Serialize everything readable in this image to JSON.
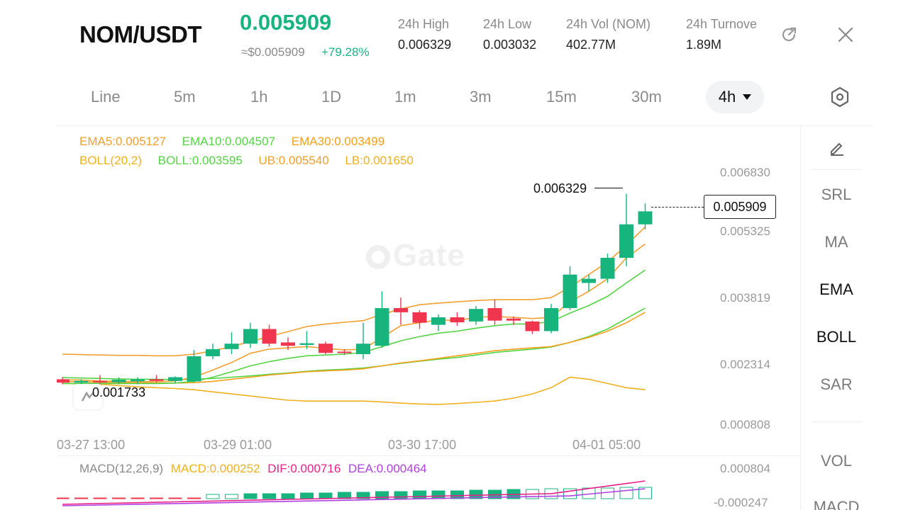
{
  "header": {
    "pair": "NOM/USDT",
    "last_price": "0.005909",
    "approx_usd": "≈$0.005909",
    "change_pct": "+79.28%",
    "stats": [
      {
        "label": "24h  High",
        "value": "0.006329"
      },
      {
        "label": "24h  Low",
        "value": "0.003032"
      },
      {
        "label": "24h  Vol (NOM)",
        "value": "402.77M"
      },
      {
        "label": "24h  Turnove",
        "value": "1.89M"
      }
    ],
    "icons": {
      "external": "external-link-icon",
      "close": "close-icon"
    }
  },
  "intervals": [
    "Line",
    "5m",
    "1h",
    "1D",
    "1m",
    "3m",
    "15m",
    "30m"
  ],
  "selected_interval": "4h",
  "indicators": {
    "ema5": "EMA5:0.005127",
    "ema10": "EMA10:0.004507",
    "ema30": "EMA30:0.003499",
    "boll_params": "BOLL(20,2)",
    "boll": "BOLL:0.003595",
    "ub": "UB:0.005540",
    "lb": "LB:0.001650"
  },
  "price_axis": [
    "0.006830",
    "0.005325",
    "0.003819",
    "0.002314",
    "0.000808"
  ],
  "time_axis": [
    "03-27 13:00",
    "03-29 01:00",
    "03-30 17:00",
    "04-01 05:00"
  ],
  "high_marker": "0.006329",
  "low_marker": "0.001733",
  "current_price_tag": "0.005909",
  "watermark": "Gate",
  "macd": {
    "params": "MACD(12,26,9)",
    "macd": "MACD:0.000252",
    "dif": "DIF:0.000716",
    "dea": "DEA:0.000464",
    "axis": [
      "0.000804",
      "-0.000247"
    ]
  },
  "side_toolbar": [
    "SRL",
    "MA",
    "EMA",
    "BOLL",
    "SAR",
    "VOL",
    "MACD"
  ],
  "side_active": [
    "EMA",
    "BOLL"
  ],
  "colors": {
    "up": "#18b47e",
    "down": "#f0364e",
    "ema5": "#f0a030",
    "ema10": "#54d444",
    "ema30": "#f4a01c",
    "boll": "#f0b020",
    "dif": "#e8208a",
    "dea": "#b040e0"
  },
  "chart_data": {
    "type": "candlestick",
    "interval": "4h",
    "ylim": [
      0.000808,
      0.00683
    ],
    "candles": [
      {
        "o": 0.0019,
        "h": 0.00195,
        "l": 0.00178,
        "c": 0.00182
      },
      {
        "o": 0.00182,
        "h": 0.0019,
        "l": 0.00173,
        "c": 0.00186
      },
      {
        "o": 0.00186,
        "h": 0.002,
        "l": 0.0018,
        "c": 0.00183
      },
      {
        "o": 0.00183,
        "h": 0.00195,
        "l": 0.00178,
        "c": 0.00189
      },
      {
        "o": 0.00185,
        "h": 0.00195,
        "l": 0.00178,
        "c": 0.0019
      },
      {
        "o": 0.0019,
        "h": 0.002,
        "l": 0.00183,
        "c": 0.00186
      },
      {
        "o": 0.00186,
        "h": 0.00197,
        "l": 0.0018,
        "c": 0.00195
      },
      {
        "o": 0.00185,
        "h": 0.0026,
        "l": 0.00183,
        "c": 0.00245
      },
      {
        "o": 0.00245,
        "h": 0.00275,
        "l": 0.00238,
        "c": 0.00262
      },
      {
        "o": 0.00262,
        "h": 0.00302,
        "l": 0.0025,
        "c": 0.00275
      },
      {
        "o": 0.00275,
        "h": 0.00325,
        "l": 0.00265,
        "c": 0.0031
      },
      {
        "o": 0.0031,
        "h": 0.0032,
        "l": 0.00268,
        "c": 0.00275
      },
      {
        "o": 0.00278,
        "h": 0.0029,
        "l": 0.0026,
        "c": 0.0027
      },
      {
        "o": 0.00272,
        "h": 0.00305,
        "l": 0.00262,
        "c": 0.00276
      },
      {
        "o": 0.00275,
        "h": 0.0028,
        "l": 0.0025,
        "c": 0.00253
      },
      {
        "o": 0.00256,
        "h": 0.00262,
        "l": 0.00248,
        "c": 0.00253
      },
      {
        "o": 0.0025,
        "h": 0.00325,
        "l": 0.00238,
        "c": 0.00275
      },
      {
        "o": 0.0027,
        "h": 0.004,
        "l": 0.00265,
        "c": 0.0036
      },
      {
        "o": 0.0036,
        "h": 0.00385,
        "l": 0.0032,
        "c": 0.0035
      },
      {
        "o": 0.0035,
        "h": 0.00355,
        "l": 0.0031,
        "c": 0.00325
      },
      {
        "o": 0.0032,
        "h": 0.00345,
        "l": 0.00305,
        "c": 0.00338
      },
      {
        "o": 0.00338,
        "h": 0.0035,
        "l": 0.00318,
        "c": 0.00326
      },
      {
        "o": 0.00328,
        "h": 0.00365,
        "l": 0.0032,
        "c": 0.00358
      },
      {
        "o": 0.0036,
        "h": 0.0038,
        "l": 0.0032,
        "c": 0.0033
      },
      {
        "o": 0.00335,
        "h": 0.0034,
        "l": 0.0032,
        "c": 0.0033
      },
      {
        "o": 0.00328,
        "h": 0.0033,
        "l": 0.00298,
        "c": 0.00305
      },
      {
        "o": 0.00305,
        "h": 0.0037,
        "l": 0.003,
        "c": 0.0036
      },
      {
        "o": 0.0036,
        "h": 0.0046,
        "l": 0.00355,
        "c": 0.0044
      },
      {
        "o": 0.0042,
        "h": 0.0044,
        "l": 0.004,
        "c": 0.0043
      },
      {
        "o": 0.0043,
        "h": 0.0049,
        "l": 0.0042,
        "c": 0.0048
      },
      {
        "o": 0.0048,
        "h": 0.00633,
        "l": 0.0046,
        "c": 0.0056
      },
      {
        "o": 0.0056,
        "h": 0.0061,
        "l": 0.00548,
        "c": 0.00591
      }
    ],
    "ema5": [
      0.00189,
      0.00188,
      0.00186,
      0.00185,
      0.00185,
      0.00184,
      0.00186,
      0.00195,
      0.00212,
      0.0023,
      0.00252,
      0.00262,
      0.00265,
      0.00268,
      0.00264,
      0.0026,
      0.00262,
      0.0029,
      0.00318,
      0.00325,
      0.00332,
      0.0033,
      0.00338,
      0.0034,
      0.00338,
      0.00335,
      0.00338,
      0.00375,
      0.004,
      0.0043,
      0.0048,
      0.00513
    ],
    "ema10": [
      0.0018,
      0.0018,
      0.0018,
      0.0018,
      0.0018,
      0.0018,
      0.00181,
      0.00185,
      0.00195,
      0.00208,
      0.00222,
      0.00232,
      0.0024,
      0.00246,
      0.00248,
      0.0025,
      0.00254,
      0.00268,
      0.00282,
      0.00292,
      0.003,
      0.00305,
      0.00312,
      0.00318,
      0.00322,
      0.00322,
      0.00328,
      0.00348,
      0.00366,
      0.00388,
      0.0042,
      0.00451
    ],
    "ema30": [
      0.00185,
      0.00184,
      0.00183,
      0.00182,
      0.00182,
      0.00181,
      0.00181,
      0.00182,
      0.00185,
      0.0019,
      0.00195,
      0.002,
      0.00204,
      0.00208,
      0.0021,
      0.00212,
      0.00215,
      0.00222,
      0.00229,
      0.00234,
      0.0024,
      0.00246,
      0.00252,
      0.00258,
      0.00262,
      0.00265,
      0.00268,
      0.00278,
      0.0029,
      0.00305,
      0.00325,
      0.0035
    ],
    "boll_mid": [
      0.00194,
      0.00193,
      0.00192,
      0.00191,
      0.0019,
      0.0019,
      0.00189,
      0.0019,
      0.00192,
      0.00195,
      0.00198,
      0.00202,
      0.00205,
      0.00209,
      0.00212,
      0.00214,
      0.00217,
      0.00222,
      0.00228,
      0.00233,
      0.00238,
      0.00242,
      0.00248,
      0.00254,
      0.00258,
      0.00262,
      0.00267,
      0.00278,
      0.00292,
      0.0031,
      0.00335,
      0.0036
    ],
    "boll_ub": [
      0.0025,
      0.00249,
      0.00248,
      0.00247,
      0.00247,
      0.00246,
      0.00246,
      0.0025,
      0.00258,
      0.00268,
      0.0028,
      0.00292,
      0.00304,
      0.00316,
      0.00322,
      0.00326,
      0.0033,
      0.00345,
      0.00358,
      0.00368,
      0.00372,
      0.00375,
      0.00378,
      0.0038,
      0.0038,
      0.0038,
      0.00385,
      0.0041,
      0.0044,
      0.0047,
      0.0051,
      0.00554
    ],
    "boll_lb": [
      0.0018,
      0.0018,
      0.00178,
      0.00175,
      0.00172,
      0.0017,
      0.00168,
      0.00165,
      0.0016,
      0.00155,
      0.0015,
      0.00145,
      0.0014,
      0.00138,
      0.00138,
      0.00138,
      0.00138,
      0.00136,
      0.00133,
      0.00131,
      0.0013,
      0.00132,
      0.00135,
      0.00138,
      0.00145,
      0.00155,
      0.0017,
      0.00195,
      0.0019,
      0.0018,
      0.0017,
      0.00165
    ]
  }
}
